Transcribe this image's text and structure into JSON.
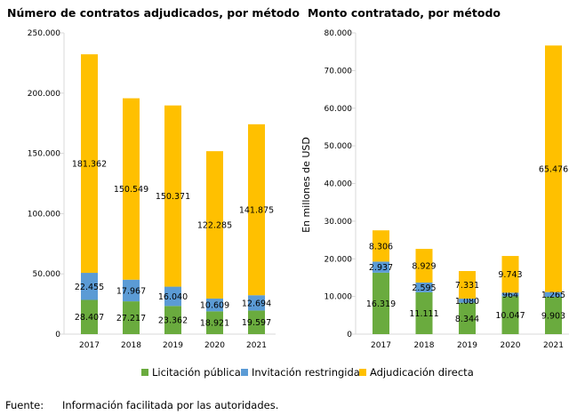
{
  "colors": {
    "licitacion": "#6aab3e",
    "invitacion": "#5b9bd5",
    "adjudicacion": "#ffc000",
    "axis": "#d9d9d9"
  },
  "chart_data": [
    {
      "type": "bar",
      "stacked": true,
      "title": "Número de contratos adjudicados, por método",
      "xlabel": "",
      "ylabel": "",
      "categories": [
        "2017",
        "2018",
        "2019",
        "2020",
        "2021"
      ],
      "ylim": [
        0,
        250000
      ],
      "yticks": [
        0,
        50000,
        100000,
        150000,
        200000,
        250000
      ],
      "ytick_labels": [
        "0",
        "50.000",
        "100.000",
        "150.000",
        "200.000",
        "250.000"
      ],
      "series": [
        {
          "name": "Licitación pública",
          "values": [
            28407,
            27217,
            23362,
            18921,
            19597
          ],
          "labels": [
            "28.407",
            "27.217",
            "23.362",
            "18.921",
            "19.597"
          ]
        },
        {
          "name": "Invitación restringida",
          "values": [
            22455,
            17967,
            16040,
            10609,
            12694
          ],
          "labels": [
            "22.455",
            "17.967",
            "16.040",
            "10.609",
            "12.694"
          ]
        },
        {
          "name": "Adjudicación directa",
          "values": [
            181362,
            150549,
            150371,
            122285,
            141875
          ],
          "labels": [
            "181.362",
            "150.549",
            "150.371",
            "122.285",
            "141.875"
          ]
        }
      ]
    },
    {
      "type": "bar",
      "stacked": true,
      "title": "Monto contratado, por método",
      "xlabel": "",
      "ylabel": "En millones de USD",
      "categories": [
        "2017",
        "2018",
        "2019",
        "2020",
        "2021"
      ],
      "ylim": [
        0,
        80000
      ],
      "yticks": [
        0,
        10000,
        20000,
        30000,
        40000,
        50000,
        60000,
        70000,
        80000
      ],
      "ytick_labels": [
        "0",
        "10.000",
        "20.000",
        "30.000",
        "40.000",
        "50.000",
        "60.000",
        "70.000",
        "80.000"
      ],
      "series": [
        {
          "name": "Licitación pública",
          "values": [
            16319,
            11111,
            8344,
            10047,
            9903
          ],
          "labels": [
            "16.319",
            "11.111",
            "8.344",
            "10.047",
            "9.903"
          ]
        },
        {
          "name": "Invitación restringida",
          "values": [
            2937,
            2595,
            1080,
            964,
            1265
          ],
          "labels": [
            "2.937",
            "2.595",
            "1.080",
            "964",
            "1.265"
          ]
        },
        {
          "name": "Adjudicación directa",
          "values": [
            8306,
            8929,
            7331,
            9743,
            65476
          ],
          "labels": [
            "8.306",
            "8.929",
            "7.331",
            "9.743",
            "65.476"
          ]
        }
      ]
    }
  ],
  "legend": {
    "items": [
      "Licitación pública",
      "Invitación restringida",
      "Adjudicación directa"
    ]
  },
  "source": {
    "label": "Fuente:",
    "text": "Información facilitada por las autoridades."
  }
}
